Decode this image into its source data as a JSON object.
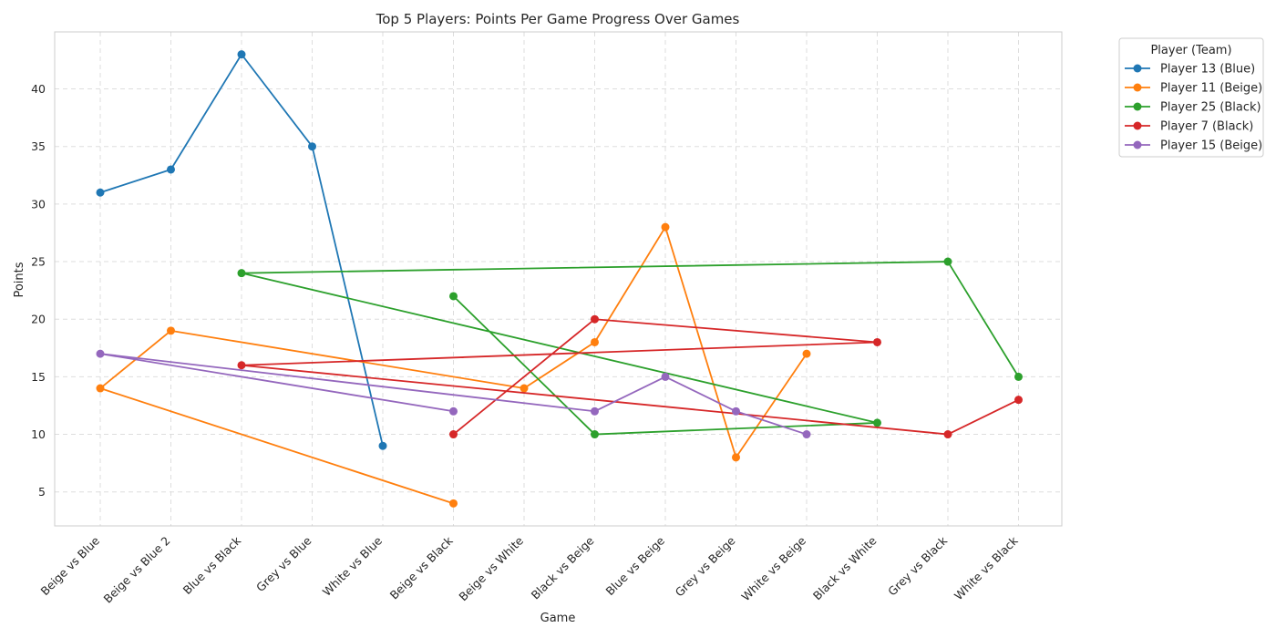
{
  "chart_data": {
    "type": "line",
    "title": "Top 5 Players: Points Per Game Progress Over Games",
    "xlabel": "Game",
    "ylabel": "Points",
    "categories": [
      "Beige vs Blue",
      "Beige vs Blue 2",
      "Blue vs Black",
      "Grey vs Blue",
      "White vs Blue",
      "Beige vs Black",
      "Beige vs White",
      "Black vs Beige",
      "Blue vs Beige",
      "Grey vs Beige",
      "White vs Beige",
      "Black vs White",
      "Grey vs Black",
      "White vs Black"
    ],
    "yticks": [
      5,
      10,
      15,
      20,
      25,
      30,
      35,
      40
    ],
    "ylim": [
      2.05,
      44.95
    ],
    "grid": true,
    "legend": {
      "title": "Player (Team)",
      "placement": "outside-top-right"
    },
    "series": [
      {
        "name": "Player 13 (Blue)",
        "color": "#1f77b4",
        "points": [
          [
            "Beige vs Blue",
            31
          ],
          [
            "Beige vs Blue 2",
            33
          ],
          [
            "Blue vs Black",
            43
          ],
          [
            "Grey vs Blue",
            35
          ],
          [
            "White vs Blue",
            9
          ]
        ]
      },
      {
        "name": "Player 11 (Beige)",
        "color": "#ff7f0e",
        "points": [
          [
            "Beige vs Black",
            4
          ],
          [
            "Beige vs Blue",
            14
          ],
          [
            "Beige vs Blue 2",
            19
          ],
          [
            "Beige vs White",
            14
          ],
          [
            "Black vs Beige",
            18
          ],
          [
            "Blue vs Beige",
            28
          ],
          [
            "Grey vs Beige",
            8
          ],
          [
            "White vs Beige",
            17
          ]
        ]
      },
      {
        "name": "Player 25 (Black)",
        "color": "#2ca02c",
        "points": [
          [
            "Beige vs Black",
            22
          ],
          [
            "Black vs Beige",
            10
          ],
          [
            "Black vs White",
            11
          ],
          [
            "Blue vs Black",
            24
          ],
          [
            "Grey vs Black",
            25
          ],
          [
            "White vs Black",
            15
          ]
        ]
      },
      {
        "name": "Player 7 (Black)",
        "color": "#d62728",
        "points": [
          [
            "Beige vs Black",
            10
          ],
          [
            "Black vs Beige",
            20
          ],
          [
            "Black vs White",
            18
          ],
          [
            "Blue vs Black",
            16
          ],
          [
            "Grey vs Black",
            10
          ],
          [
            "White vs Black",
            13
          ]
        ]
      },
      {
        "name": "Player 15 (Beige)",
        "color": "#9467bd",
        "points": [
          [
            "Beige vs Black",
            12
          ],
          [
            "Beige vs Blue",
            17
          ],
          [
            "Black vs Beige",
            12
          ],
          [
            "Blue vs Beige",
            15
          ],
          [
            "Grey vs Beige",
            12
          ],
          [
            "White vs Beige",
            10
          ]
        ]
      }
    ]
  }
}
